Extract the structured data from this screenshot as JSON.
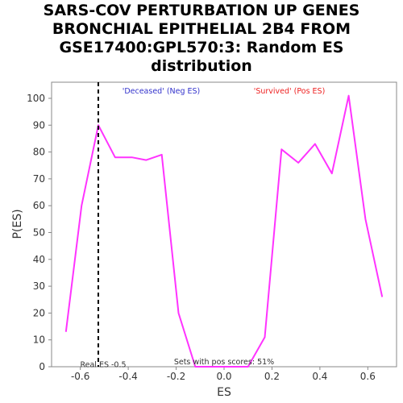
{
  "chart_data": {
    "type": "line",
    "title_lines": [
      "SARS-COV PERTURBATION UP GENES",
      "BRONCHIAL EPITHELIAL 2B4 FROM",
      "GSE17400:GPL570:3: Random ES",
      "distribution"
    ],
    "xlabel": "ES",
    "ylabel": "P(ES)",
    "xlim": [
      -0.72,
      0.72
    ],
    "ylim": [
      0,
      106
    ],
    "xticks": [
      -0.6,
      -0.4,
      -0.2,
      0.0,
      0.2,
      0.4,
      0.6
    ],
    "xtick_labels": [
      "-0.6",
      "-0.4",
      "-0.2",
      "0.0",
      "0.2",
      "0.4",
      "0.6"
    ],
    "yticks": [
      0,
      10,
      20,
      30,
      40,
      50,
      60,
      70,
      80,
      90,
      100
    ],
    "ytick_labels": [
      "0",
      "10",
      "20",
      "30",
      "40",
      "50",
      "60",
      "70",
      "80",
      "90",
      "100"
    ],
    "grid": false,
    "series": [
      {
        "color": "#ff33ff",
        "x": [
          -0.66,
          -0.595,
          -0.525,
          -0.455,
          -0.385,
          -0.325,
          -0.26,
          -0.19,
          -0.12,
          0.1,
          0.17,
          0.24,
          0.31,
          0.38,
          0.45,
          0.52,
          0.59,
          0.66
        ],
        "y": [
          13,
          60,
          90,
          78,
          78,
          77,
          79,
          20,
          0,
          0,
          11,
          81,
          76,
          83,
          72,
          101,
          55,
          26
        ]
      }
    ],
    "annotations": {
      "deceased": {
        "text": "'Deceased' (Neg ES)",
        "color": "#3333cc"
      },
      "survived": {
        "text": "'Survived' (Pos ES)",
        "color": "#ee2222"
      },
      "real_es_label": "Real ES -0.5",
      "real_es_value": -0.525,
      "pos_scores": "Sets with pos scores: 51%"
    }
  }
}
